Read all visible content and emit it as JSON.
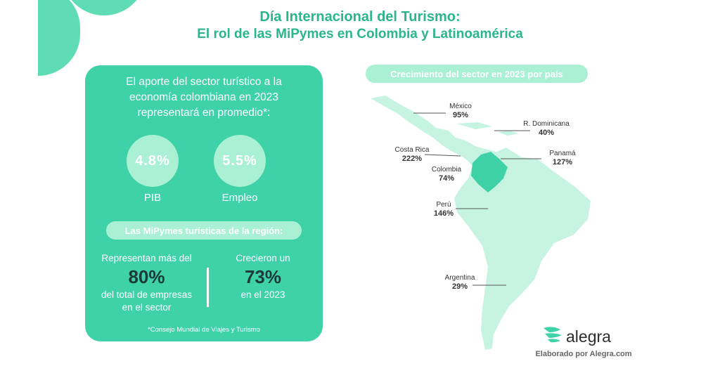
{
  "header": {
    "title": "Día Internacional del Turismo:",
    "subtitle": "El rol de las MiPymes en Colombia y Latinoamérica"
  },
  "card": {
    "intro_lines": [
      "El aporte del sector turístico a la",
      "economía colombiana en 2023",
      "representará en promedio*:"
    ],
    "metrics": [
      {
        "value": "4.8%",
        "label": "PIB"
      },
      {
        "value": "5.5%",
        "label": "Empleo"
      }
    ],
    "section_pill": "Las MiPymes turísticas de la región:",
    "stat_left": {
      "pre": "Representan más del",
      "value": "80%",
      "post_lines": [
        "del total de empresas",
        "en el sector"
      ]
    },
    "stat_right": {
      "pre": "Crecieron un",
      "value": "73%",
      "post": "en el 2023"
    },
    "footnote": "*Consejo Mundial de Viajes y Turismo"
  },
  "map": {
    "title": "Crecimiento del sector en 2023 por país",
    "countries": [
      {
        "name": "México",
        "pct": "95%"
      },
      {
        "name": "R. Dominicana",
        "pct": "40%"
      },
      {
        "name": "Costa Rica",
        "pct": "222%"
      },
      {
        "name": "Panamá",
        "pct": "127%"
      },
      {
        "name": "Colombia",
        "pct": "74%"
      },
      {
        "name": "Perú",
        "pct": "146%"
      },
      {
        "name": "Argentina",
        "pct": "29%"
      }
    ],
    "colors": {
      "land": "#c6f3e2",
      "highlight": "#3fd1a8",
      "line": "#555555"
    }
  },
  "branding": {
    "logo_text": "alegra",
    "logo_icon": "alegra-wave-icon",
    "credit": "Elaborado por Alegra.com"
  },
  "colors": {
    "accent": "#3fd1a8",
    "light_accent": "#aaf0d4",
    "title": "#2bb58c",
    "dark_value": "#1d3a3a"
  }
}
